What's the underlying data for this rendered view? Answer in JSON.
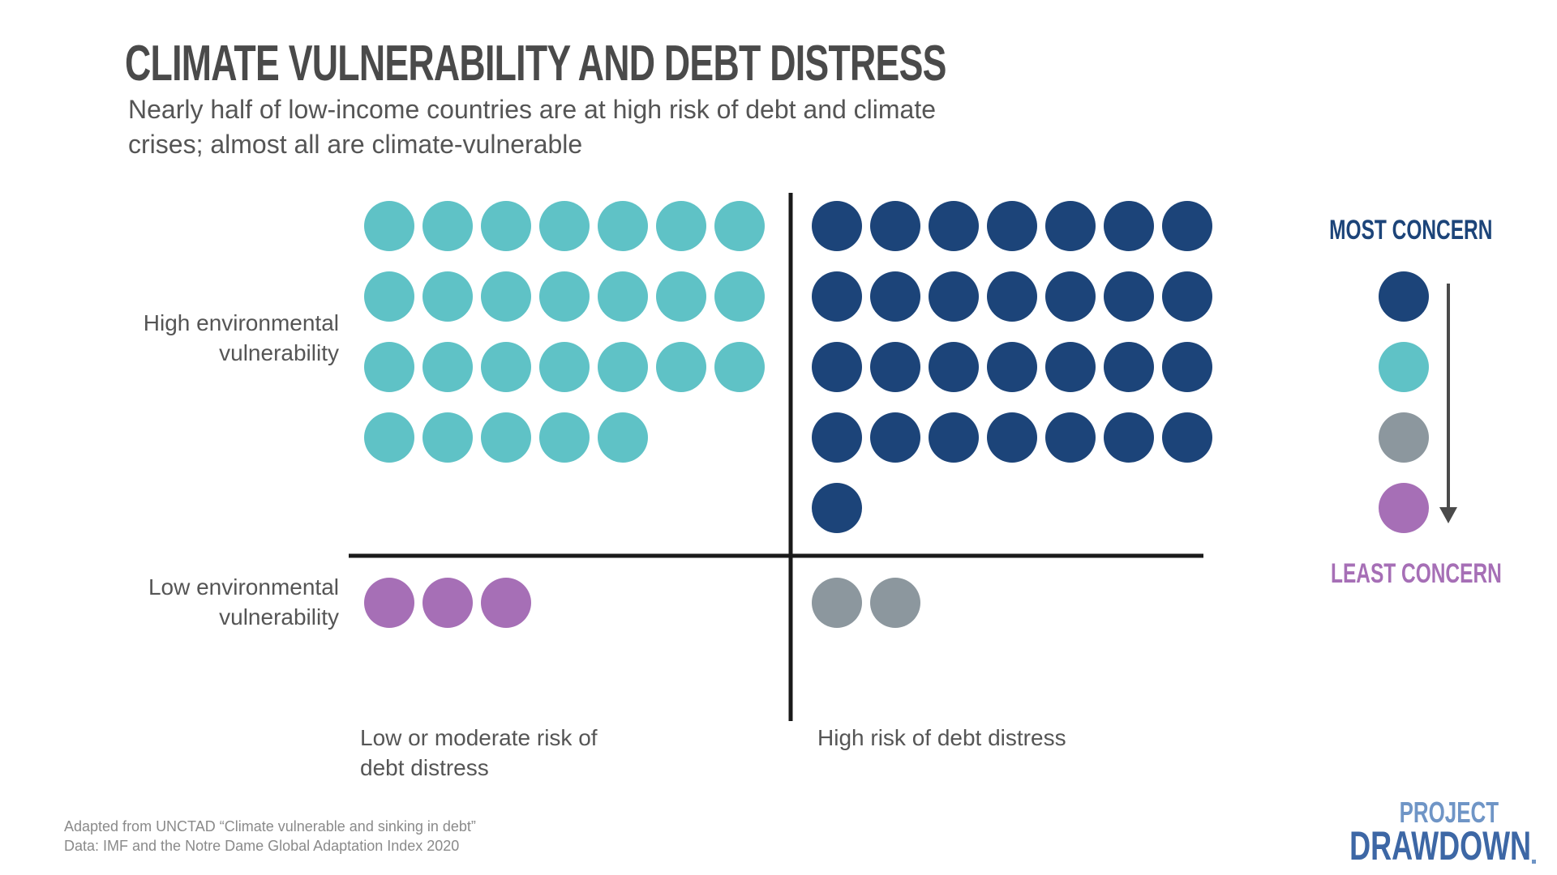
{
  "title": "CLIMATE VULNERABILITY AND DEBT DISTRESS",
  "subtitle": "Nearly half of low-income countries are at high risk of debt and climate crises; almost all are climate-vulnerable",
  "chart_data": {
    "type": "dot-matrix",
    "rows": [
      "High environmental vulnerability",
      "Low environmental vulnerability"
    ],
    "columns": [
      "Low or moderate risk of debt distress",
      "High risk of debt distress"
    ],
    "cells": [
      {
        "row": "High environmental vulnerability",
        "column": "Low or moderate risk of debt distress",
        "count": 26,
        "color": "#5fc2c6"
      },
      {
        "row": "High environmental vulnerability",
        "column": "High risk of debt distress",
        "count": 29,
        "color": "#1c4479"
      },
      {
        "row": "Low environmental vulnerability",
        "column": "Low or moderate risk of debt distress",
        "count": 3,
        "color": "#a66fb6"
      },
      {
        "row": "Low environmental vulnerability",
        "column": "High risk of debt distress",
        "count": 2,
        "color": "#8c979e"
      }
    ],
    "legend": {
      "most_label": "MOST CONCERN",
      "least_label": "LEAST CONCERN",
      "order": [
        "#1c4479",
        "#5fc2c6",
        "#8c979e",
        "#a66fb6"
      ]
    }
  },
  "source": {
    "line1": "Adapted from UNCTAD “Climate vulnerable and sinking in debt”",
    "line2": "Data: IMF and the Notre Dame Global Adaptation Index 2020"
  },
  "logo": {
    "line1": "PROJECT",
    "line2": "DRAWDOWN"
  },
  "colors": {
    "title": "#4a4a4a",
    "axis": "#1a1a1a",
    "arrow": "#4a4a4a"
  }
}
